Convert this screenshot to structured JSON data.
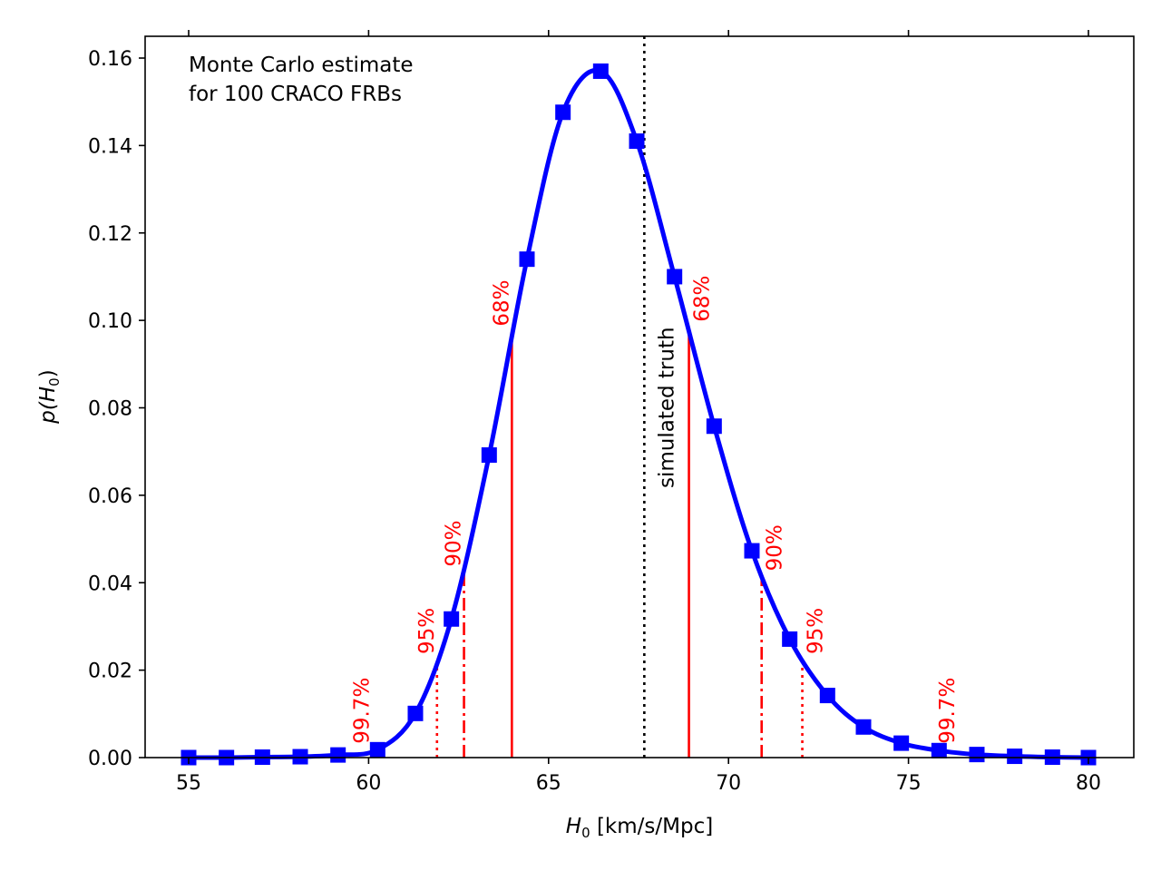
{
  "chart_data": {
    "type": "line",
    "title": "",
    "xlabel_var": "H",
    "xlabel_sub": "0",
    "xlabel_unit": " [km/s/Mpc]",
    "ylabel_prefix": "p(",
    "ylabel_var": "H",
    "ylabel_sub": "0",
    "ylabel_suffix": ")",
    "xlim": [
      55,
      80
    ],
    "ylim": [
      0,
      0.16
    ],
    "xticks": [
      55,
      60,
      65,
      70,
      75,
      80
    ],
    "xtick_labels": [
      "55",
      "60",
      "65",
      "70",
      "75",
      "80"
    ],
    "yticks": [
      0,
      0.02,
      0.04,
      0.06,
      0.08,
      0.1,
      0.12,
      0.14,
      0.16
    ],
    "ytick_labels": [
      "0.00",
      "0.02",
      "0.04",
      "0.06",
      "0.08",
      "0.10",
      "0.12",
      "0.14",
      "0.16"
    ],
    "annotation_line1": "Monte Carlo estimate",
    "annotation_line2": "for 100 CRACO FRBs",
    "truth_label": "simulated truth",
    "truth_x": 67.66,
    "series": [
      {
        "name": "p(H0)",
        "color": "#0000ff",
        "x": [
          55.0,
          56.05,
          57.05,
          58.1,
          59.15,
          60.25,
          61.3,
          62.3,
          63.35,
          64.4,
          65.4,
          66.45,
          67.45,
          68.5,
          69.6,
          70.65,
          71.7,
          72.75,
          73.75,
          74.8,
          75.85,
          76.9,
          77.95,
          79.0,
          80.0
        ],
        "values": [
          0.0,
          0.0,
          0.0001,
          0.0002,
          0.0006,
          0.0018,
          0.0101,
          0.0317,
          0.0692,
          0.114,
          0.1476,
          0.157,
          0.141,
          0.11,
          0.0758,
          0.0473,
          0.0271,
          0.0142,
          0.007,
          0.0033,
          0.0016,
          0.0007,
          0.0003,
          0.0001,
          0.0
        ]
      }
    ],
    "confidence_intervals": [
      {
        "label": "68%",
        "left_x": 63.98,
        "left_y": 0.097,
        "right_x": 68.9,
        "right_y": 0.098,
        "style": "solid"
      },
      {
        "label": "90%",
        "left_x": 62.65,
        "left_y": 0.042,
        "right_x": 70.92,
        "right_y": 0.041,
        "style": "dashdot"
      },
      {
        "label": "95%",
        "left_x": 61.9,
        "left_y": 0.022,
        "right_x": 72.05,
        "right_y": 0.022,
        "style": "dotted"
      },
      {
        "label": "99.7%",
        "left_x": 60.1,
        "left_y": 0.0015,
        "right_x": 75.72,
        "right_y": 0.0015,
        "style": "dashed"
      }
    ],
    "ci_color": "#ff0000"
  }
}
